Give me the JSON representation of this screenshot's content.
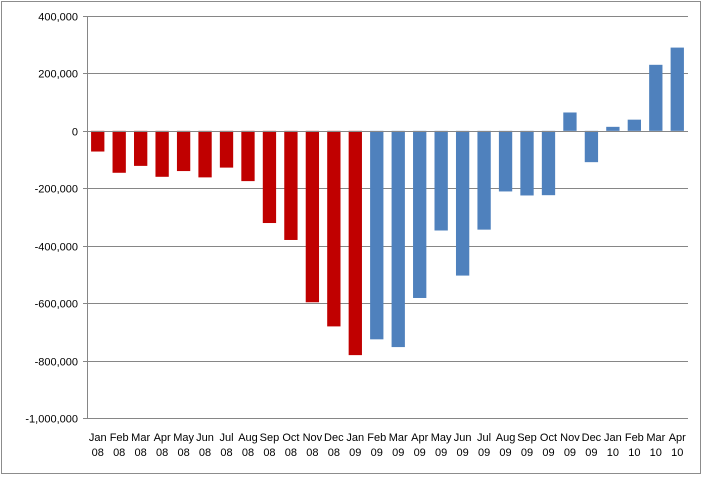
{
  "chart_data": {
    "type": "bar",
    "title": "",
    "xlabel": "",
    "ylabel": "",
    "ylim": [
      -1000000,
      400000
    ],
    "yticks": [
      400000,
      200000,
      0,
      -200000,
      -400000,
      -600000,
      -800000,
      -1000000
    ],
    "ytick_labels": [
      "400,000",
      "200,000",
      "0",
      "-200,000",
      "-400,000",
      "-600,000",
      "-800,000",
      "-1,000,000"
    ],
    "grid": true,
    "legend": "none",
    "categories": [
      [
        "Jan",
        "08"
      ],
      [
        "Feb",
        "08"
      ],
      [
        "Mar",
        "08"
      ],
      [
        "Apr",
        "08"
      ],
      [
        "May",
        "08"
      ],
      [
        "Jun",
        "08"
      ],
      [
        "Jul",
        "08"
      ],
      [
        "Aug",
        "08"
      ],
      [
        "Sep",
        "08"
      ],
      [
        "Oct",
        "08"
      ],
      [
        "Nov",
        "08"
      ],
      [
        "Dec",
        "08"
      ],
      [
        "Jan",
        "09"
      ],
      [
        "Feb",
        "09"
      ],
      [
        "Mar",
        "09"
      ],
      [
        "Apr",
        "09"
      ],
      [
        "May",
        "09"
      ],
      [
        "Jun",
        "09"
      ],
      [
        "Jul",
        "09"
      ],
      [
        "Aug",
        "09"
      ],
      [
        "Sep",
        "09"
      ],
      [
        "Oct",
        "09"
      ],
      [
        "Nov",
        "09"
      ],
      [
        "Dec",
        "09"
      ],
      [
        "Jan",
        "10"
      ],
      [
        "Feb",
        "10"
      ],
      [
        "Mar",
        "10"
      ],
      [
        "Apr",
        "10"
      ]
    ],
    "values": [
      -72000,
      -146000,
      -122000,
      -160000,
      -140000,
      -162000,
      -128000,
      -175000,
      -321000,
      -380000,
      -597000,
      -681000,
      -781000,
      -726000,
      -753000,
      -582000,
      -347000,
      -504000,
      -344000,
      -211000,
      -225000,
      -224000,
      64000,
      -109000,
      14000,
      39000,
      230000,
      290000
    ],
    "bar_colors": [
      "#c00000",
      "#c00000",
      "#c00000",
      "#c00000",
      "#c00000",
      "#c00000",
      "#c00000",
      "#c00000",
      "#c00000",
      "#c00000",
      "#c00000",
      "#c00000",
      "#c00000",
      "#4f81bd",
      "#4f81bd",
      "#4f81bd",
      "#4f81bd",
      "#4f81bd",
      "#4f81bd",
      "#4f81bd",
      "#4f81bd",
      "#4f81bd",
      "#4f81bd",
      "#4f81bd",
      "#4f81bd",
      "#4f81bd",
      "#4f81bd",
      "#4f81bd"
    ],
    "gridline_color": "#868686",
    "axis_color": "#868686"
  }
}
